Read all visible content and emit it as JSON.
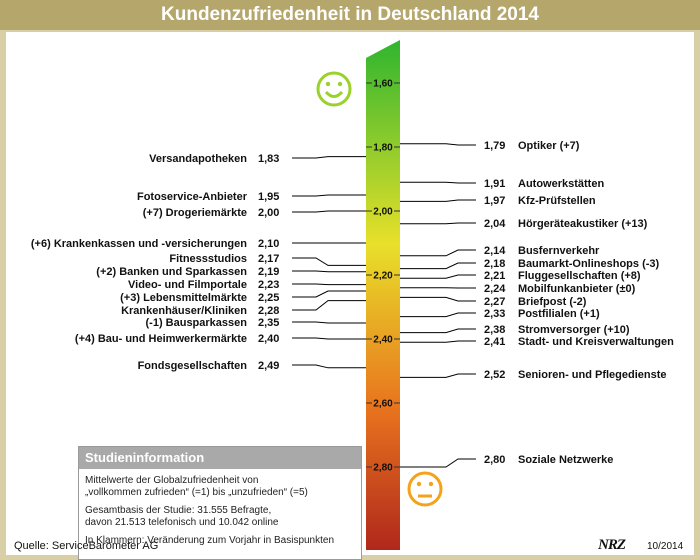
{
  "title": "Kundenzufriedenheit in Deutschland 2014",
  "chart_data": {
    "type": "scale",
    "axis": {
      "min": 1.55,
      "max": 2.87,
      "ticks": [
        "1,60",
        "1,80",
        "2,00",
        "2,20",
        "2,40",
        "2,60",
        "2,80"
      ],
      "tick_values": [
        1.6,
        1.8,
        2.0,
        2.2,
        2.4,
        2.6,
        2.8
      ]
    },
    "colors": {
      "top": "#2fb52f",
      "middle": "#e8e02a",
      "lower": "#e8741e",
      "bottom": "#b0281c",
      "smiley_happy": "#9bd12b",
      "smiley_sad": "#f3a21a"
    },
    "left_items": [
      {
        "label": "Versandapotheken",
        "value_text": "1,83",
        "value": 1.83
      },
      {
        "label": "Fotoservice-Anbieter",
        "value_text": "1,95",
        "value": 1.95
      },
      {
        "label": "(+7) Drogeriemärkte",
        "value_text": "2,00",
        "value": 2.0
      },
      {
        "label": "(+6) Krankenkassen und -versicherungen",
        "value_text": "2,10",
        "value": 2.1
      },
      {
        "label": "Fitnessstudios",
        "value_text": "2,17",
        "value": 2.17
      },
      {
        "label": "(+2) Banken und Sparkassen",
        "value_text": "2,19",
        "value": 2.19
      },
      {
        "label": "Video- und Filmportale",
        "value_text": "2,23",
        "value": 2.23
      },
      {
        "label": "(+3) Lebensmittelmärkte",
        "value_text": "2,25",
        "value": 2.25
      },
      {
        "label": "Krankenhäuser/Kliniken",
        "value_text": "2,28",
        "value": 2.28
      },
      {
        "label": "(-1) Bausparkassen",
        "value_text": "2,35",
        "value": 2.35
      },
      {
        "label": "(+4) Bau- und Heimwerkermärkte",
        "value_text": "2,40",
        "value": 2.4
      },
      {
        "label": "Fondsgesellschaften",
        "value_text": "2,49",
        "value": 2.49
      }
    ],
    "right_items": [
      {
        "label": "Optiker (+7)",
        "value_text": "1,79",
        "value": 1.79
      },
      {
        "label": "Autowerkstätten",
        "value_text": "1,91",
        "value": 1.91
      },
      {
        "label": "Kfz-Prüfstellen",
        "value_text": "1,97",
        "value": 1.97
      },
      {
        "label": "Hörgeräteakustiker (+13)",
        "value_text": "2,04",
        "value": 2.04
      },
      {
        "label": "Busfernverkehr",
        "value_text": "2,14",
        "value": 2.14
      },
      {
        "label": "Baumarkt-Onlineshops (-3)",
        "value_text": "2,18",
        "value": 2.18
      },
      {
        "label": "Fluggesellschaften (+8)",
        "value_text": "2,21",
        "value": 2.21
      },
      {
        "label": "Mobilfunkanbieter (±0)",
        "value_text": "2,24",
        "value": 2.24
      },
      {
        "label": "Briefpost (-2)",
        "value_text": "2,27",
        "value": 2.27
      },
      {
        "label": "Postfilialen (+1)",
        "value_text": "2,33",
        "value": 2.33
      },
      {
        "label": "Stromversorger (+10)",
        "value_text": "2,38",
        "value": 2.38
      },
      {
        "label": "Stadt- und Kreisverwaltungen",
        "value_text": "2,41",
        "value": 2.41
      },
      {
        "label": "Senioren- und Pflegedienste",
        "value_text": "2,52",
        "value": 2.52
      },
      {
        "label": "Soziale Netzwerke",
        "value_text": "2,80",
        "value": 2.8
      }
    ]
  },
  "study": {
    "heading": "Studieninformation",
    "lines1": [
      "Mittelwerte der Globalzufriedenheit von",
      "„vollkommen zufrieden“ (=1) bis „unzufrieden“ (=5)"
    ],
    "lines2": [
      "Gesamtbasis der Studie: 31.555 Befragte,",
      "davon 21.513 telefonisch und 10.042 online"
    ],
    "lines3": [
      "In Klammern: Veränderung zum Vorjahr in Basispunkten"
    ]
  },
  "source": "Quelle: ServiceBarometer AG",
  "logo": "NRZ",
  "date": "10/2014"
}
